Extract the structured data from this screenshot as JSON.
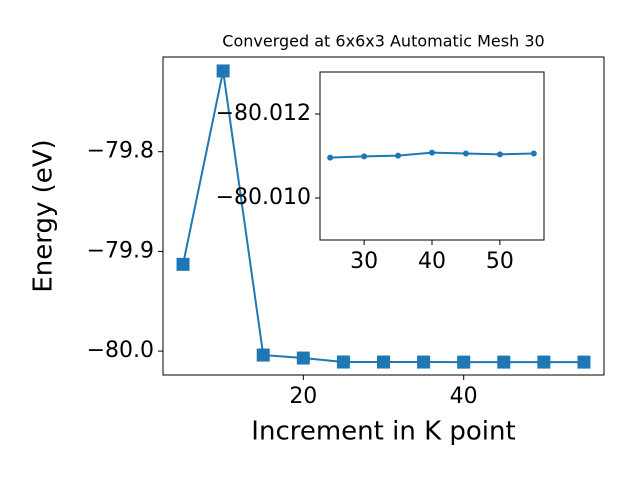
{
  "chart_data": [
    {
      "type": "line",
      "title": "Converged at 6x6x3 Automatic Mesh 30",
      "x_label": "Increment in K point",
      "y_label": "Energy (eV)",
      "x": [
        5,
        10,
        15,
        20,
        25,
        30,
        35,
        40,
        45,
        50,
        55
      ],
      "series": [
        {
          "color": "#1f77b4",
          "marker": "square",
          "values": [
            -79.913,
            -79.719,
            -80.004,
            -80.007,
            -80.01096,
            -80.01099,
            -80.01101,
            -80.01108,
            -80.01106,
            -80.01104,
            -80.01106
          ]
        }
      ],
      "xlim": [
        2.5,
        57.5
      ],
      "ylim": [
        -80.024,
        -79.705
      ],
      "xticks": [
        20,
        40
      ],
      "yticks": [
        {
          "value": -79.8,
          "label": "−79.8"
        },
        {
          "value": -79.9,
          "label": "−79.9"
        },
        {
          "value": -80.0,
          "label": "−80.0"
        }
      ]
    },
    {
      "type": "line",
      "x": [
        25,
        30,
        35,
        40,
        45,
        50,
        55
      ],
      "series": [
        {
          "color": "#1f77b4",
          "marker": "circle",
          "values": [
            -80.01096,
            -80.01099,
            -80.01101,
            -80.01108,
            -80.01106,
            -80.01104,
            -80.01106
          ]
        }
      ],
      "xlim": [
        23.5,
        56.5
      ],
      "ylim": [
        -80.009,
        -80.013
      ],
      "xticks": [
        30,
        40,
        50
      ],
      "yticks": [
        {
          "value": -80.012,
          "label": "−80.012"
        },
        {
          "value": -80.01,
          "label": "−80.010"
        }
      ]
    }
  ]
}
